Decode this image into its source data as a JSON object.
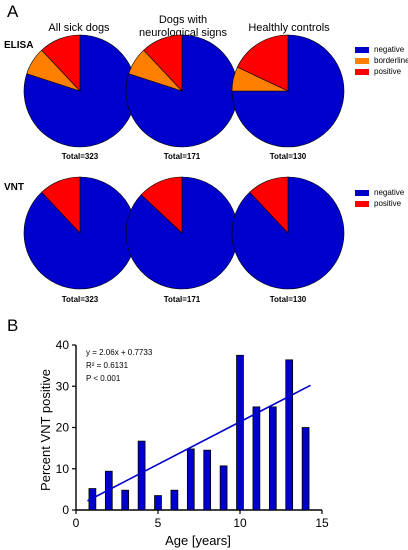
{
  "panels": {
    "a": "A",
    "b": "B"
  },
  "colors": {
    "negative": "#0000cc",
    "borderline": "#ff8000",
    "positive": "#ff0000",
    "bar": "#0000cc",
    "trend": "#0000cc"
  },
  "groups": [
    "All sick dogs",
    "Dogs with neurological signs",
    "Healthly controls"
  ],
  "rows": [
    "ELISA",
    "VNT"
  ],
  "legend_elisa": [
    "negative",
    "borderline",
    "positive"
  ],
  "legend_vnt": [
    "negative",
    "positive"
  ],
  "chart_data": [
    {
      "type": "pie",
      "panel": "A",
      "row": "ELISA",
      "title": "All sick dogs",
      "total_label": "Total=323",
      "labels": [
        "negative",
        "borderline",
        "positive"
      ],
      "values": [
        80,
        8,
        12
      ]
    },
    {
      "type": "pie",
      "panel": "A",
      "row": "ELISA",
      "title": "Dogs with neurological signs",
      "total_label": "Total=171",
      "labels": [
        "negative",
        "borderline",
        "positive"
      ],
      "values": [
        80,
        8,
        12
      ]
    },
    {
      "type": "pie",
      "panel": "A",
      "row": "ELISA",
      "title": "Healthly controls",
      "total_label": "Total=130",
      "labels": [
        "negative",
        "borderline",
        "positive"
      ],
      "values": [
        75,
        7,
        18
      ]
    },
    {
      "type": "pie",
      "panel": "A",
      "row": "VNT",
      "title": "All sick dogs",
      "total_label": "Total=323",
      "labels": [
        "negative",
        "positive"
      ],
      "values": [
        88,
        12
      ]
    },
    {
      "type": "pie",
      "panel": "A",
      "row": "VNT",
      "title": "Dogs with neurological signs",
      "total_label": "Total=171",
      "labels": [
        "negative",
        "positive"
      ],
      "values": [
        87,
        13
      ]
    },
    {
      "type": "pie",
      "panel": "A",
      "row": "VNT",
      "title": "Healthly controls",
      "total_label": "Total=130",
      "labels": [
        "negative",
        "positive"
      ],
      "values": [
        88,
        12
      ]
    },
    {
      "type": "bar",
      "panel": "B",
      "xlabel": "Age [years]",
      "ylabel": "Percent VNT positive",
      "x": [
        1,
        2,
        3,
        4,
        5,
        6,
        7,
        8,
        9,
        10,
        11,
        12,
        13,
        14
      ],
      "values": [
        5.2,
        9.4,
        4.8,
        16.7,
        3.5,
        4.8,
        14.8,
        14.5,
        10.7,
        37.5,
        25.0,
        25.0,
        36.4,
        20.0
      ],
      "xlim": [
        0,
        15
      ],
      "ylim": [
        0,
        40
      ],
      "xticks": [
        "0",
        "5",
        "10",
        "15"
      ],
      "yticks": [
        "0",
        "10",
        "20",
        "30",
        "40"
      ],
      "trendline": {
        "slope": 2.06,
        "intercept": 0.7733,
        "x_range": [
          0.7,
          14.3
        ]
      },
      "annotations": [
        "y = 2.06x + 0.7733",
        "R² = 0.6131",
        "P < 0.001"
      ]
    }
  ]
}
